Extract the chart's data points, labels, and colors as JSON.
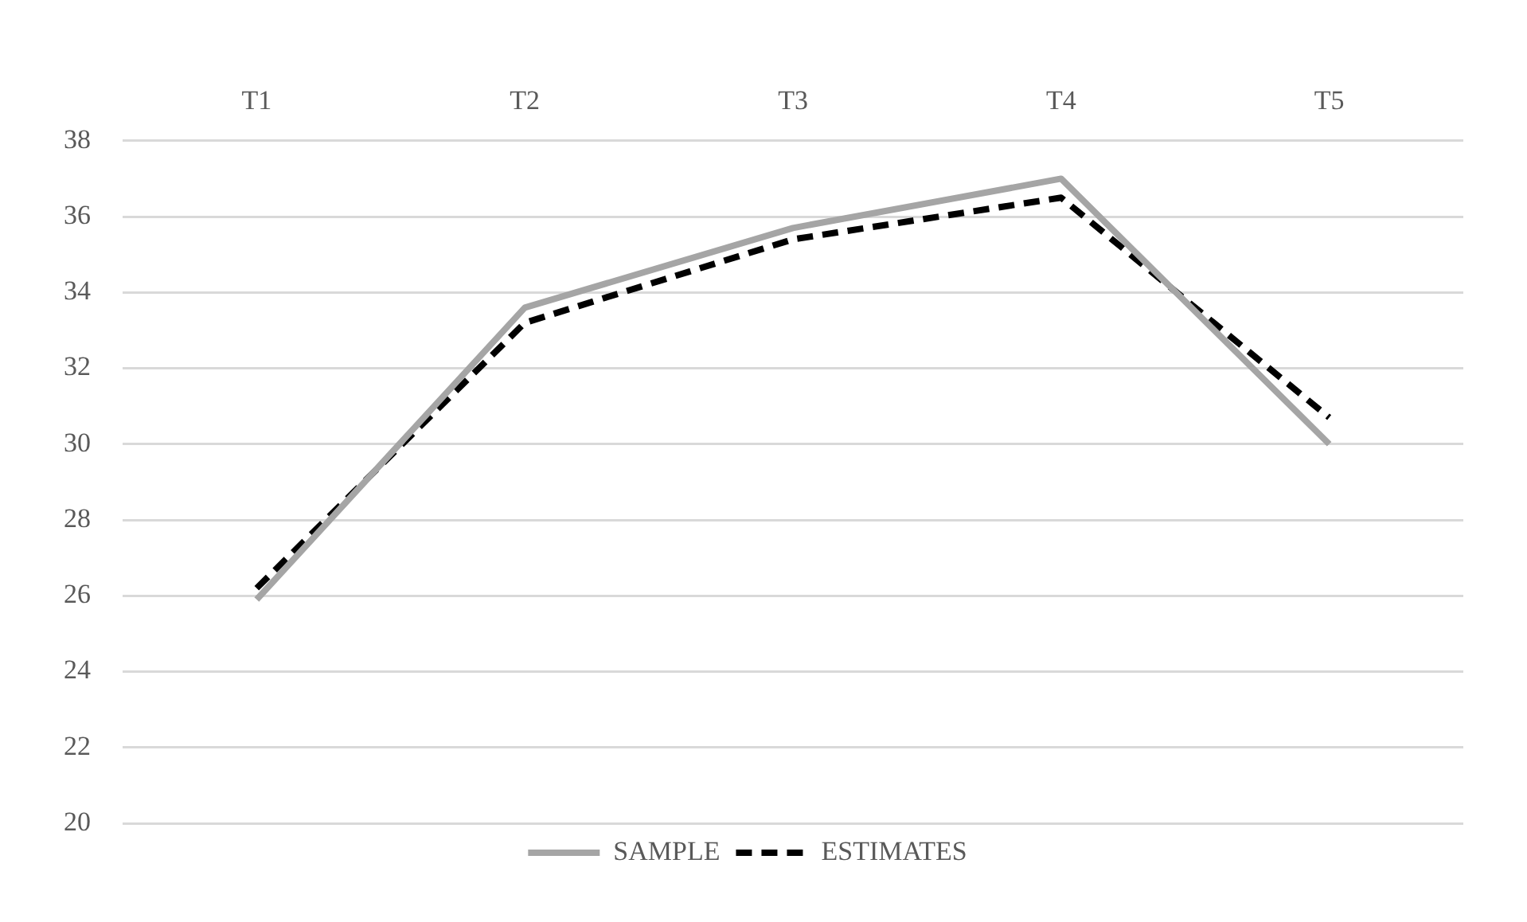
{
  "chart_data": {
    "type": "line",
    "categories": [
      "T1",
      "T2",
      "T3",
      "T4",
      "T5"
    ],
    "series": [
      {
        "name": "SAMPLE",
        "color": "#a5a5a5",
        "line_style": "solid",
        "values": [
          25.9,
          33.6,
          35.7,
          37.0,
          30.0
        ]
      },
      {
        "name": "ESTIMATES",
        "color": "#000000",
        "line_style": "dashed",
        "values": [
          26.2,
          33.2,
          35.4,
          36.5,
          30.7
        ]
      }
    ],
    "ylim": [
      20,
      38
    ],
    "yticks": [
      20,
      22,
      24,
      26,
      28,
      30,
      32,
      34,
      36,
      38
    ],
    "grid": "y",
    "legend": "bottom",
    "marker": "none"
  }
}
